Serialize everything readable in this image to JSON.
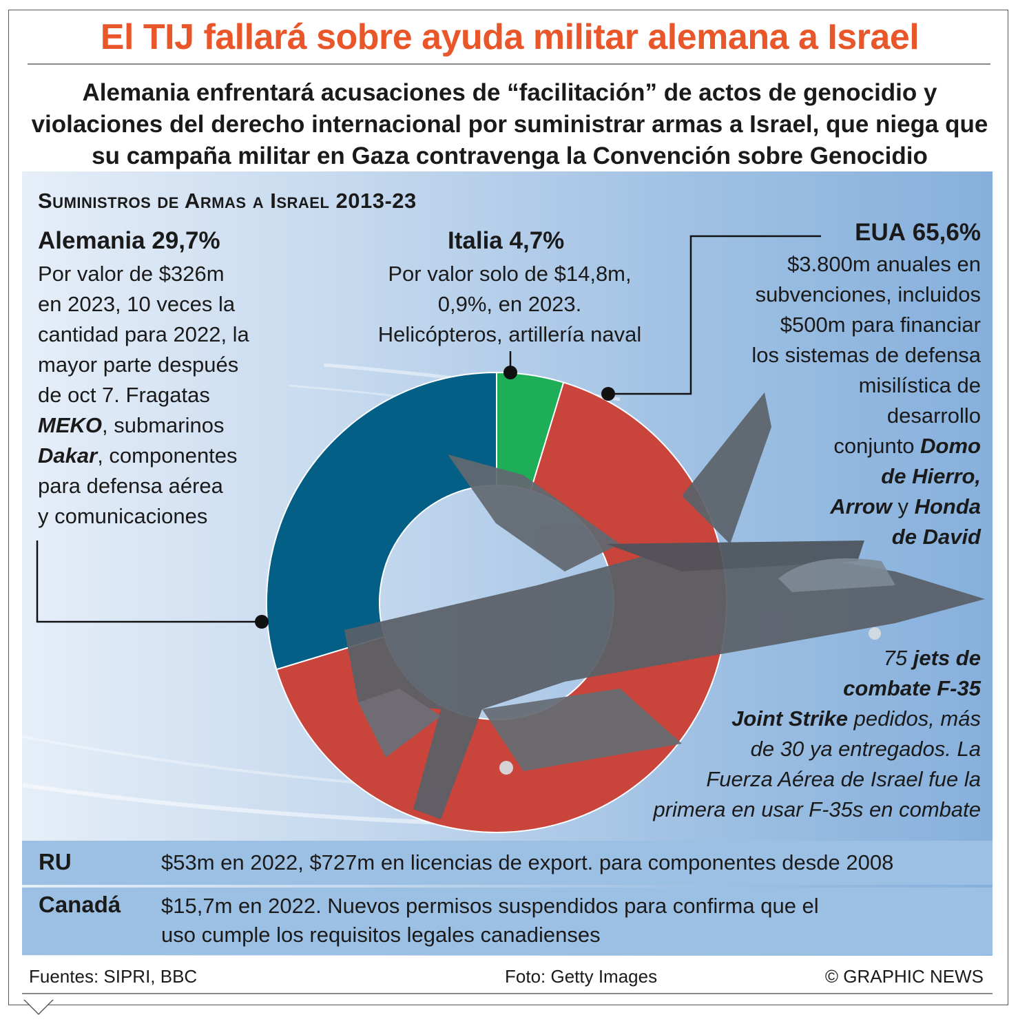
{
  "title": "El TIJ fallará sobre ayuda militar alemana a Israel",
  "subtitle": "Alemania enfrentará acusaciones de “facilitación” de actos de genocidio y violaciones del derecho internacional por suministrar armas a Israel, que niega que su campaña militar en Gaza contravenga la Convención sobre Genocidio",
  "section_title": "Suministros de Armas a Israel 2013-23",
  "chart_data": {
    "type": "pie",
    "title": "Suministros de Armas a Israel 2013-23",
    "categories": [
      "EUA",
      "Alemania",
      "Italia"
    ],
    "values": [
      65.6,
      29.7,
      4.7
    ],
    "colors": [
      "#c9443a",
      "#035f86",
      "#1fae58"
    ]
  },
  "germany": {
    "name": "Alemania",
    "pct": "29,7%",
    "lines": [
      "Por valor de $326m",
      "en 2023, 10 veces la",
      "cantidad para 2022, la",
      "mayor parte después",
      "de oct 7. Fragatas"
    ],
    "meko": "MEKO",
    "submarinos": ", submarinos",
    "dakar": "Dakar",
    "componentes": ", componentes",
    "line_defensa": "para defensa aérea",
    "line_com": "y comunicaciones"
  },
  "italy": {
    "name": "Italia",
    "pct": "4,7%",
    "lines": [
      "Por valor solo de $14,8m,",
      "0,9%, en 2023.",
      "Helicópteros, artillería naval"
    ]
  },
  "usa": {
    "name": "EUA",
    "pct": "65,6%",
    "lines": [
      "$3.800m anuales en",
      "subvenciones, incluidos",
      "$500m para financiar",
      "los sistemas de defensa",
      "misilística de",
      "desarrollo"
    ],
    "conjunto": "conjunto ",
    "domo": "Domo",
    "hierro": "de Hierro,",
    "arrow": "Arrow",
    "y": " y ",
    "honda": "Honda",
    "david": "de David"
  },
  "f35": {
    "n": "75 ",
    "jets": "jets de",
    "combate": "combate F-35",
    "joint": "Joint Strike",
    "pedidos": " pedidos, más",
    "line1": "de 30 ya entregados. La",
    "line2": "Fuerza Aérea de Israel fue la",
    "line3": "primera en usar F-35s en combate"
  },
  "rows": {
    "uk_label": "RU",
    "uk_text": "$53m en 2022, $727m en licencias de export. para componentes desde 2008",
    "ca_label": "Canadá",
    "ca_line1": "$15,7m en 2022. Nuevos permisos suspendidos para confirma que el",
    "ca_line2": "uso cumple los requisitos legales canadienses"
  },
  "footer": {
    "sources": "Fuentes: SIPRI, BBC",
    "photo": "Foto: Getty Images",
    "credit": "© GRAPHIC NEWS"
  }
}
